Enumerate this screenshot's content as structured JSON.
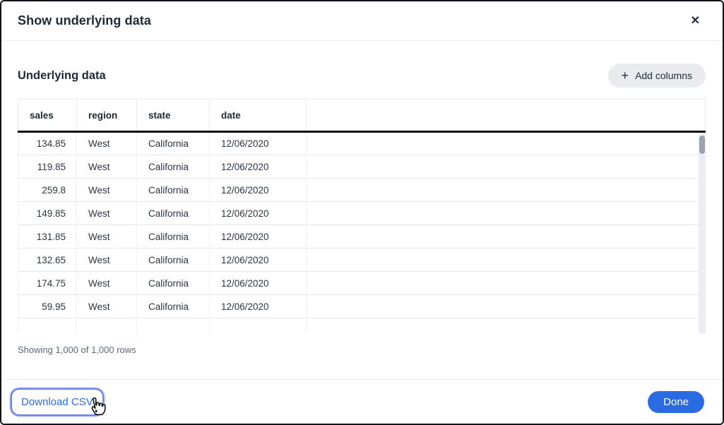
{
  "modal": {
    "title": "Show underlying data",
    "close_label": "✕"
  },
  "content": {
    "section_title": "Underlying data",
    "add_columns": {
      "icon": "+",
      "label": "Add columns"
    },
    "table": {
      "columns": [
        "sales",
        "region",
        "state",
        "date"
      ],
      "rows": [
        [
          "134.85",
          "West",
          "California",
          "12/06/2020"
        ],
        [
          "119.85",
          "West",
          "California",
          "12/06/2020"
        ],
        [
          "259.8",
          "West",
          "California",
          "12/06/2020"
        ],
        [
          "149.85",
          "West",
          "California",
          "12/06/2020"
        ],
        [
          "131.85",
          "West",
          "California",
          "12/06/2020"
        ],
        [
          "132.65",
          "West",
          "California",
          "12/06/2020"
        ],
        [
          "174.75",
          "West",
          "California",
          "12/06/2020"
        ],
        [
          "59.95",
          "West",
          "California",
          "12/06/2020"
        ]
      ]
    },
    "row_count_text": "Showing 1,000 of 1,000 rows"
  },
  "footer": {
    "download_csv_label": "Download CSV",
    "done_label": "Done"
  },
  "colors": {
    "accent_blue": "#2a6be2",
    "link_blue": "#2e6de6",
    "focus_ring": "#6f82ea",
    "title_text": "#1e2a38",
    "header_rule": "#0b0d10",
    "row_border": "#e2e6ed",
    "pill_bg": "#e9ebef",
    "scrollbar_thumb": "#9aa3ae",
    "scrollbar_track": "#ebedf2"
  }
}
